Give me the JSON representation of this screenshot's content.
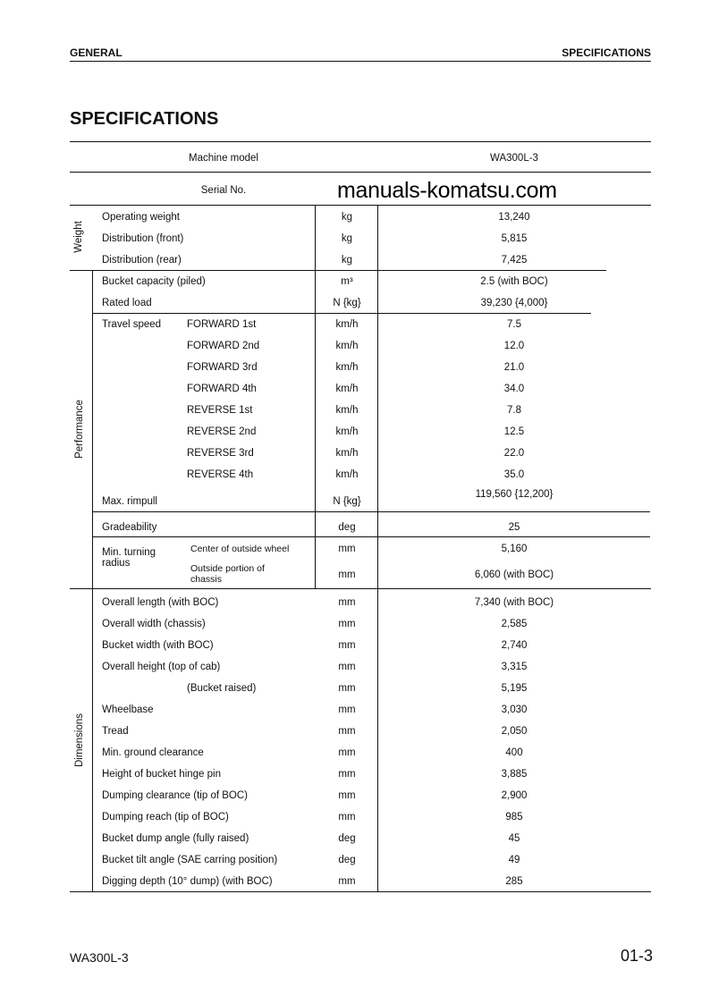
{
  "header": {
    "left": "GENERAL",
    "right": "SPECIFICATIONS"
  },
  "title": "SPECIFICATIONS",
  "watermark": "manuals-komatsu.com",
  "machine_model": {
    "label": "Machine model",
    "value": "WA300L-3"
  },
  "serial": {
    "label": "Serial No.",
    "value": ""
  },
  "groups": {
    "weight": "Weight",
    "performance": "Performance",
    "dimensions": "Dimensions"
  },
  "rows": [
    {
      "item": "Operating weight",
      "sub": "",
      "unit": "kg",
      "value": "13,240"
    },
    {
      "item": "Distribution (front)",
      "sub": "",
      "unit": "kg",
      "value": "5,815"
    },
    {
      "item": "Distribution (rear)",
      "sub": "",
      "unit": "kg",
      "value": "7,425"
    },
    {
      "item": "Bucket capacity (piled)",
      "sub": "",
      "unit": "m³",
      "value": "2.5 (with BOC)"
    },
    {
      "item": "Rated load",
      "sub": "",
      "unit": "N {kg}",
      "value": "39,230 {4,000}"
    },
    {
      "item": "Travel speed",
      "sub": "FORWARD 1st",
      "unit": "km/h",
      "value": "7.5"
    },
    {
      "item": "",
      "sub": "FORWARD 2nd",
      "unit": "km/h",
      "value": "12.0"
    },
    {
      "item": "",
      "sub": "FORWARD 3rd",
      "unit": "km/h",
      "value": "21.0"
    },
    {
      "item": "",
      "sub": "FORWARD 4th",
      "unit": "km/h",
      "value": "34.0"
    },
    {
      "item": "",
      "sub": "REVERSE 1st",
      "unit": "km/h",
      "value": "7.8"
    },
    {
      "item": "",
      "sub": "REVERSE 2nd",
      "unit": "km/h",
      "value": "12.5"
    },
    {
      "item": "",
      "sub": "REVERSE 3rd",
      "unit": "km/h",
      "value": "22.0"
    },
    {
      "item": "",
      "sub": "REVERSE 4th",
      "unit": "km/h",
      "value": "35.0"
    },
    {
      "item": "Max. rimpull",
      "sub": "",
      "unit": "N {kg}",
      "value": "119,560 {12,200}"
    },
    {
      "item": "Gradeability",
      "sub": "",
      "unit": "deg",
      "value": "25"
    },
    {
      "item": "Min. turning radius",
      "sub": "Center of outside wheel",
      "unit": "mm",
      "value": "5,160"
    },
    {
      "item": "",
      "sub": "Outside portion of chassis",
      "unit": "mm",
      "value": "6,060 (with BOC)"
    },
    {
      "item": "Overall length (with BOC)",
      "sub": "",
      "unit": "mm",
      "value": "7,340 (with BOC)"
    },
    {
      "item": "Overall width (chassis)",
      "sub": "",
      "unit": "mm",
      "value": "2,585"
    },
    {
      "item": "Bucket width (with BOC)",
      "sub": "",
      "unit": "mm",
      "value": "2,740"
    },
    {
      "item": "Overall height (top of cab)",
      "sub": "",
      "unit": "mm",
      "value": "3,315"
    },
    {
      "item": "",
      "sub": "(Bucket raised)",
      "unit": "mm",
      "value": "5,195"
    },
    {
      "item": "Wheelbase",
      "sub": "",
      "unit": "mm",
      "value": "3,030"
    },
    {
      "item": "Tread",
      "sub": "",
      "unit": "mm",
      "value": "2,050"
    },
    {
      "item": "Min. ground clearance",
      "sub": "",
      "unit": "mm",
      "value": "400"
    },
    {
      "item": "Height of bucket hinge pin",
      "sub": "",
      "unit": "mm",
      "value": "3,885"
    },
    {
      "item": "Dumping clearance (tip of BOC)",
      "sub": "",
      "unit": "mm",
      "value": "2,900"
    },
    {
      "item": "Dumping reach (tip of BOC)",
      "sub": "",
      "unit": "mm",
      "value": "985"
    },
    {
      "item": "Bucket dump angle (fully raised)",
      "sub": "",
      "unit": "deg",
      "value": "45"
    },
    {
      "item": "Bucket tilt angle (SAE carring position)",
      "sub": "",
      "unit": "deg",
      "value": "49"
    },
    {
      "item": "Digging depth (10° dump) (with BOC)",
      "sub": "",
      "unit": "mm",
      "value": "285"
    }
  ],
  "footer": {
    "model": "WA300L-3",
    "page": "01-3"
  }
}
